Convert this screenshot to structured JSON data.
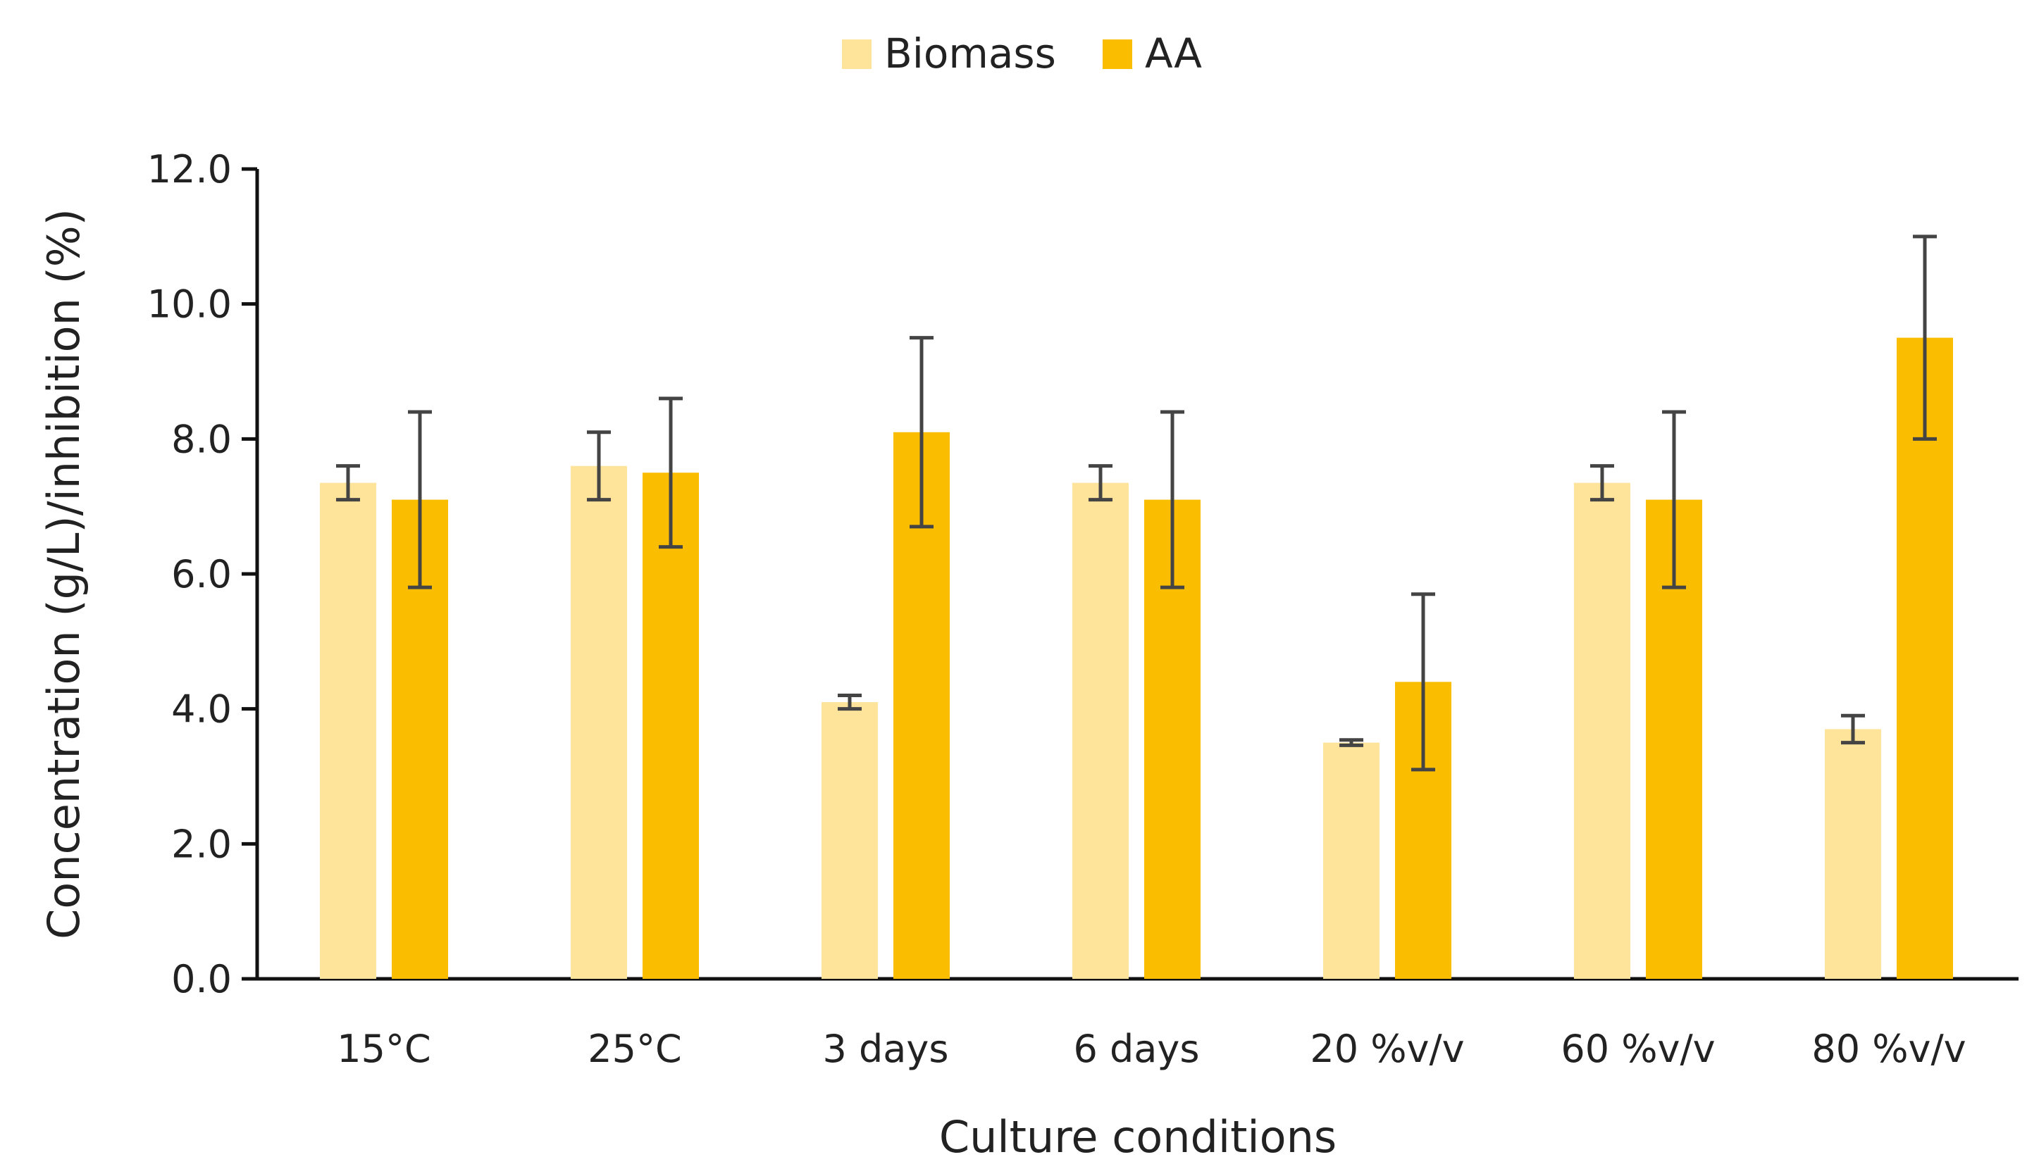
{
  "chart_data": {
    "type": "bar",
    "title": "",
    "xlabel": "Culture conditions",
    "ylabel": "Concentration (g/L)/inhibition (%)",
    "ylim": [
      0,
      12
    ],
    "yticks": [
      0,
      2,
      4,
      6,
      8,
      10,
      12
    ],
    "ytick_labels": [
      "0.0",
      "2.0",
      "4.0",
      "6.0",
      "8.0",
      "10.0",
      "12.0"
    ],
    "categories": [
      "15°C",
      "25°C",
      "3 days",
      "6 days",
      "20 %v/v",
      "60 %v/v",
      "80 %v/v"
    ],
    "legend_position": "top-center",
    "grid": false,
    "series": [
      {
        "name": "Biomass",
        "color": "#fde49a",
        "values": [
          7.35,
          7.6,
          4.1,
          7.35,
          3.5,
          7.35,
          3.7
        ],
        "errors": [
          0.25,
          0.5,
          0.1,
          0.25,
          0.04,
          0.25,
          0.2
        ]
      },
      {
        "name": "AA",
        "color": "#fbbd00",
        "values": [
          7.1,
          7.5,
          8.1,
          7.1,
          4.4,
          7.1,
          9.5
        ],
        "errors": [
          1.3,
          1.1,
          1.4,
          1.3,
          1.3,
          1.3,
          1.5
        ]
      }
    ],
    "errorbar_color": "#444444"
  }
}
